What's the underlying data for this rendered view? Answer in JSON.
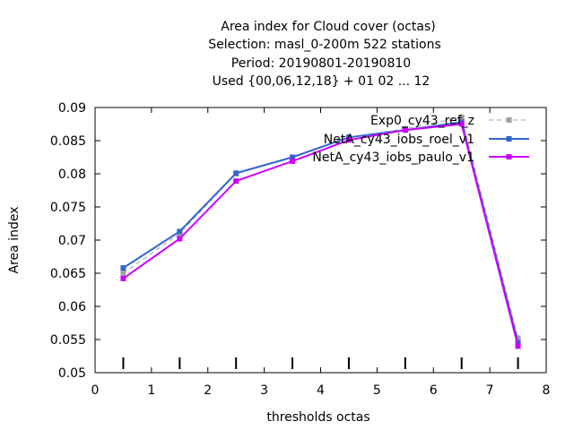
{
  "chart_data": {
    "type": "line",
    "title_lines": [
      "Area index  for Cloud cover (octas)",
      "Selection: masl_0-200m    522 stations",
      "Period: 20190801-20190810",
      "Used {00,06,12,18} + 01 02 ... 12"
    ],
    "xlabel": "thresholds octas",
    "ylabel": "Area index",
    "xlim": [
      0,
      8
    ],
    "ylim": [
      0.05,
      0.09
    ],
    "x_ticks": [
      "0",
      "1",
      "2",
      "3",
      "4",
      "5",
      "6",
      "7",
      "8"
    ],
    "y_ticks": [
      "0.05",
      "0.055",
      "0.06",
      "0.065",
      "0.07",
      "0.075",
      "0.08",
      "0.085",
      "0.09"
    ],
    "legend_position": "top-right",
    "grid": false,
    "x": [
      0.5,
      1.5,
      2.5,
      3.5,
      4.5,
      5.5,
      6.5,
      7.5
    ],
    "series": [
      {
        "name": "Exp0_cy43_ref_z",
        "color": "#a0a0a0",
        "dashed": true,
        "values": [
          0.065,
          0.071,
          0.08,
          0.0825,
          0.0855,
          0.0868,
          0.0885,
          0.0552
        ]
      },
      {
        "name": "NetA_cy43_iobs_roel_v1",
        "color": "#3366cc",
        "dashed": false,
        "values": [
          0.0658,
          0.0713,
          0.0801,
          0.0825,
          0.0855,
          0.0866,
          0.0878,
          0.0545
        ]
      },
      {
        "name": "NetA_cy43_iobs_paulo_v1",
        "color": "#cc00ff",
        "dashed": false,
        "values": [
          0.0642,
          0.0702,
          0.0789,
          0.0819,
          0.0851,
          0.0866,
          0.0875,
          0.054
        ]
      }
    ],
    "bottom_markers_x": [
      0.5,
      1.5,
      2.5,
      3.5,
      4.5,
      5.5,
      6.5,
      7.5
    ]
  }
}
